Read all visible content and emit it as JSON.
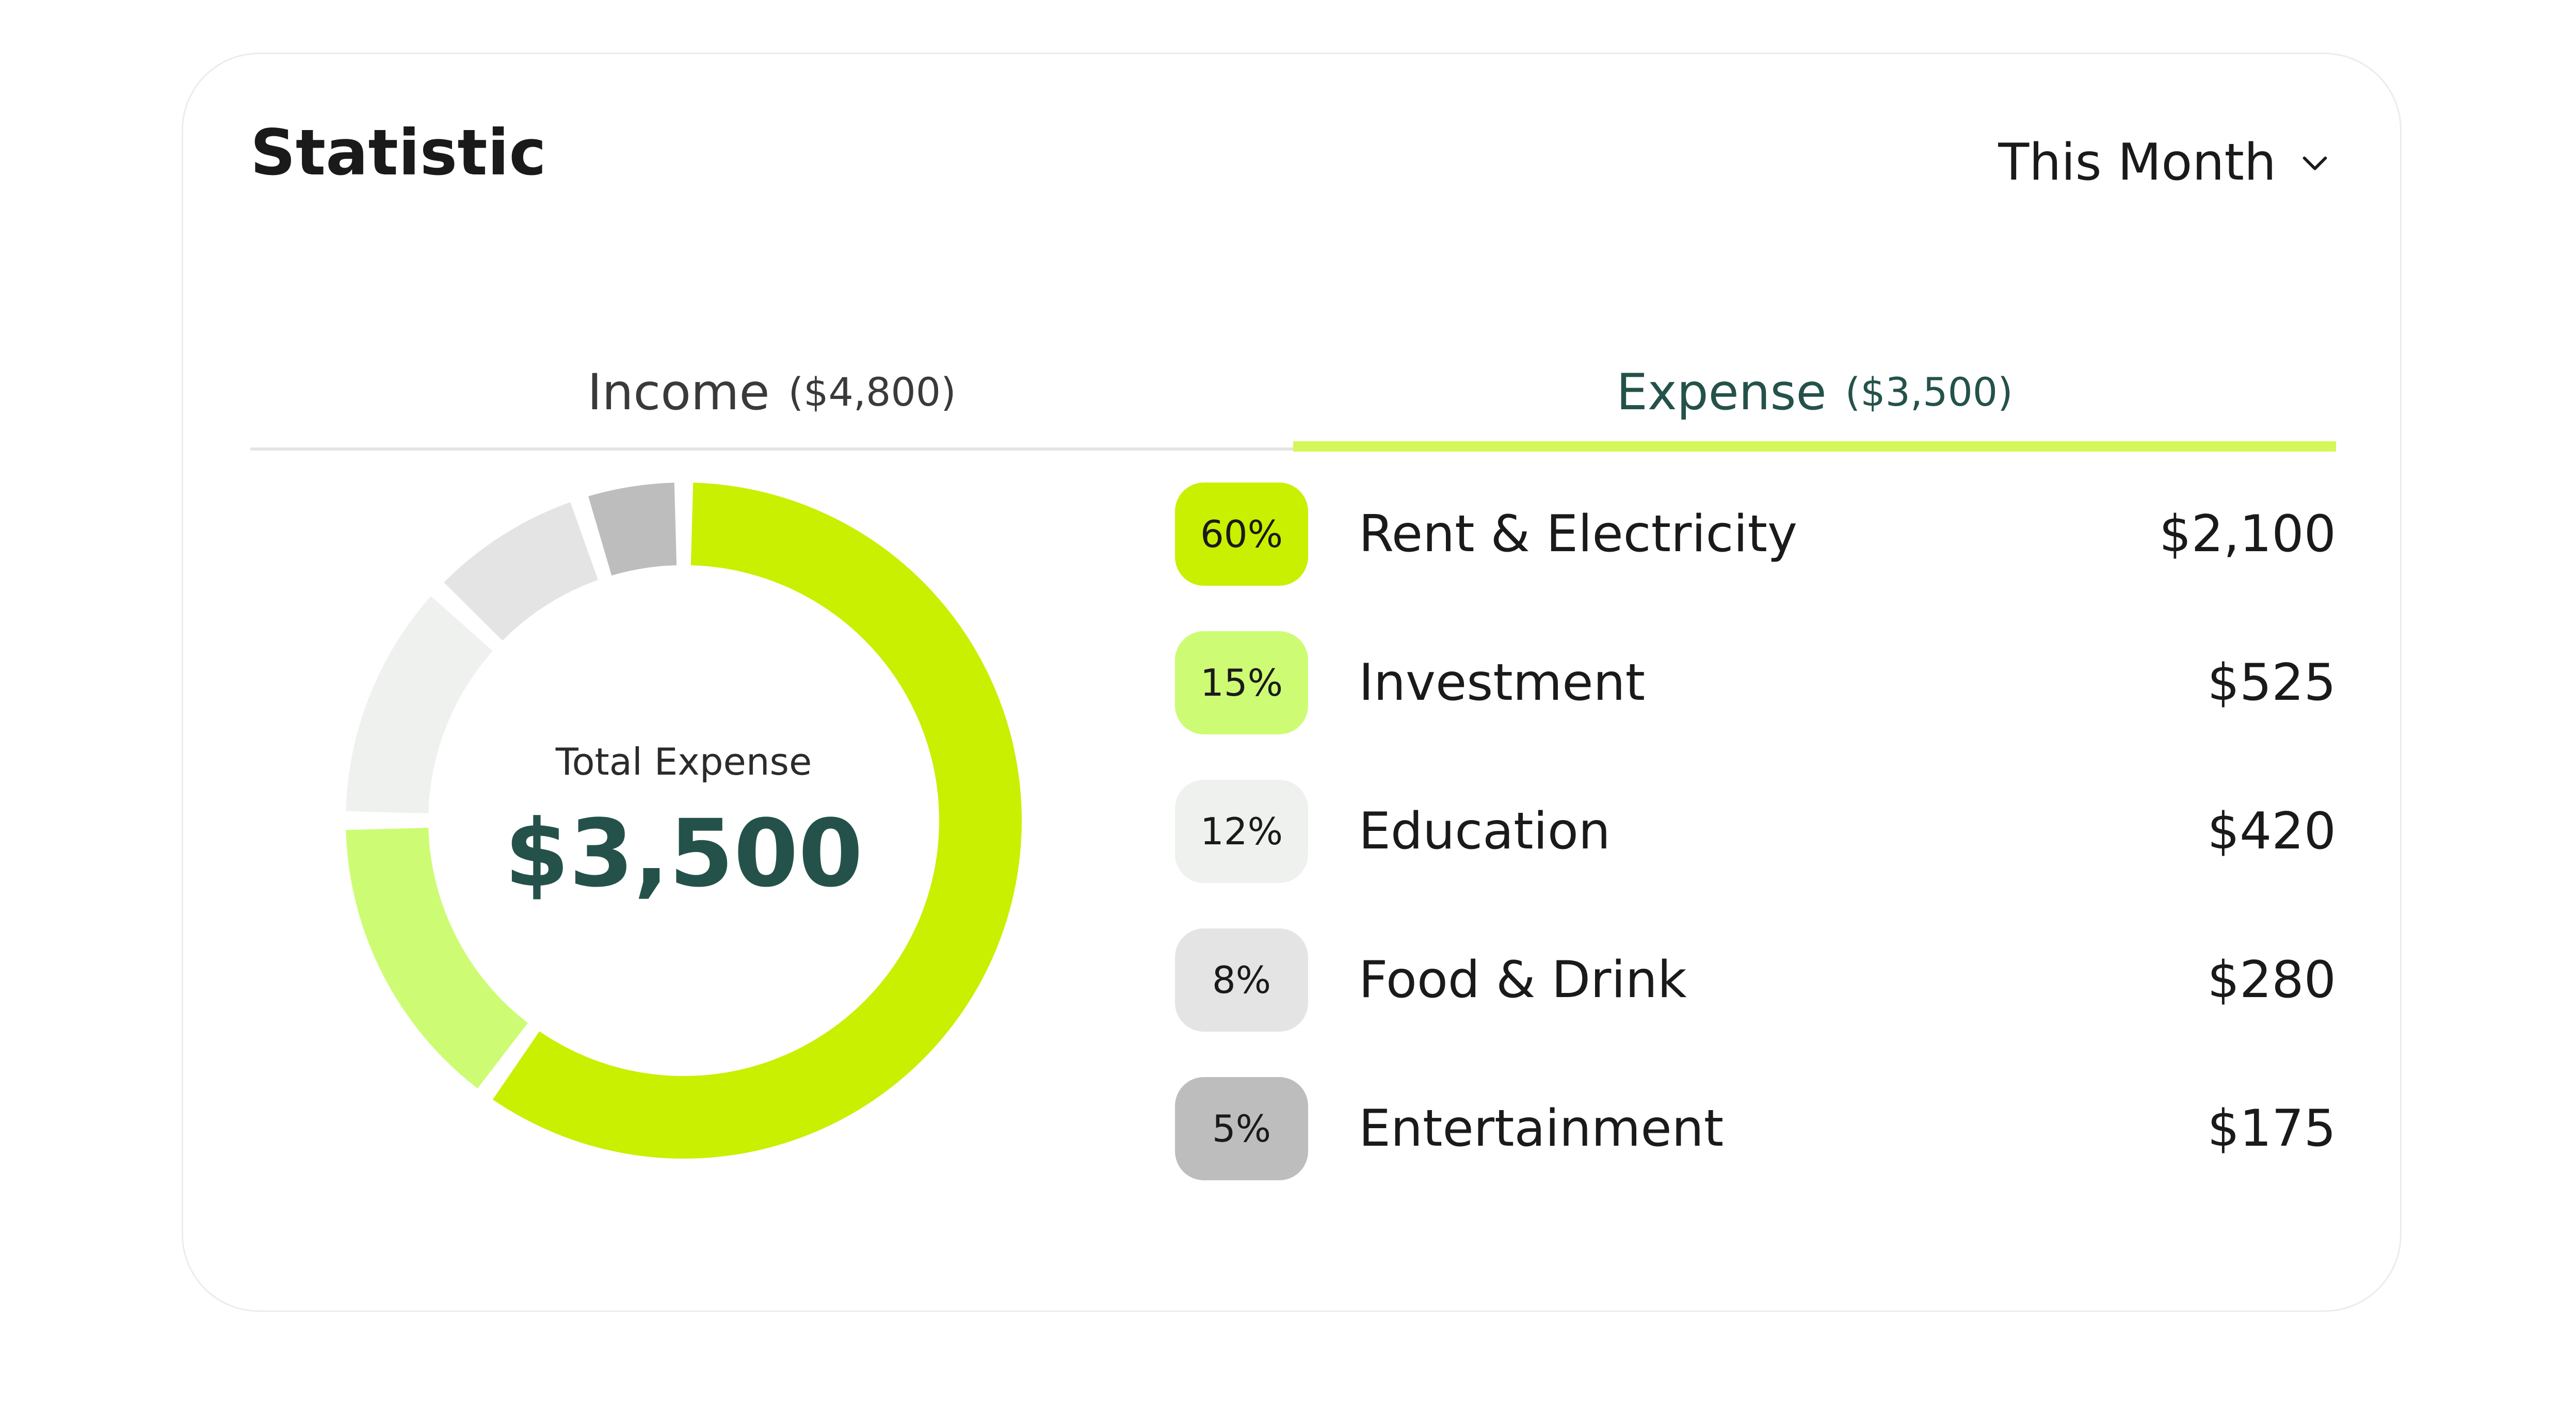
{
  "card": {
    "title": "Statistic",
    "period": {
      "label": "This Month",
      "icon": "chevron-down-icon"
    }
  },
  "tabs": [
    {
      "label": "Income",
      "amount": "($4,800)",
      "active": false
    },
    {
      "label": "Expense",
      "amount": "($3,500)",
      "active": true
    }
  ],
  "summary": {
    "label": "Total Expense",
    "total": "$3,500"
  },
  "colors": {
    "accent": "#c8f000",
    "accent_light": "#d4f75a",
    "heading_green": "#24524a"
  },
  "chart_data": {
    "type": "pie",
    "categories": [
      "Rent & Electricity",
      "Investment",
      "Education",
      "Food & Drink",
      "Entertainment"
    ],
    "values": [
      60,
      15,
      12,
      8,
      5
    ],
    "colors": [
      "#c8f000",
      "#cdfc74",
      "#eef1ee",
      "#e4e4e4",
      "#bdbdbd"
    ]
  },
  "categories": [
    {
      "percent": "60%",
      "name": "Rent & Electricity",
      "amount": "$2,100",
      "color": "#c8f000"
    },
    {
      "percent": "15%",
      "name": "Investment",
      "amount": "$525",
      "color": "#cdfc74"
    },
    {
      "percent": "12%",
      "name": "Education",
      "amount": "$420",
      "color": "#eef1ee"
    },
    {
      "percent": "8%",
      "name": "Food & Drink",
      "amount": "$280",
      "color": "#e4e4e4"
    },
    {
      "percent": "5%",
      "name": "Entertainment",
      "amount": "$175",
      "color": "#bdbdbd"
    }
  ]
}
